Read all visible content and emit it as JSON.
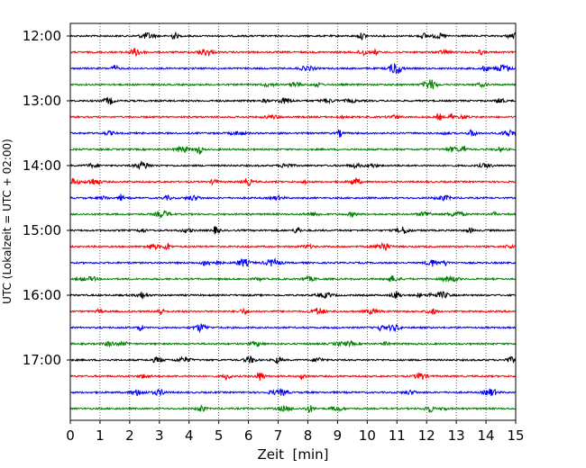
{
  "chart_data": {
    "type": "line",
    "title": "",
    "xlabel": "Zeit  [min]",
    "ylabel": "UTC (Lokalzeit = UTC + 02:00)",
    "xlim": [
      0,
      15
    ],
    "x_ticks": [
      "0",
      "1",
      "2",
      "3",
      "4",
      "5",
      "6",
      "7",
      "8",
      "9",
      "10",
      "11",
      "12",
      "13",
      "14",
      "15"
    ],
    "y_ticks": [
      "12:00",
      "13:00",
      "14:00",
      "15:00",
      "16:00",
      "17:00"
    ],
    "grid_x": true,
    "grid_style": "dotted",
    "trace_interval_minutes": 15,
    "trace_colors": [
      "#000000",
      "#ff0000",
      "#0000ff",
      "#008000"
    ],
    "traces": [
      {
        "start": "12:00",
        "color": "#000000"
      },
      {
        "start": "12:15",
        "color": "#ff0000"
      },
      {
        "start": "12:30",
        "color": "#0000ff"
      },
      {
        "start": "12:45",
        "color": "#008000"
      },
      {
        "start": "13:00",
        "color": "#000000"
      },
      {
        "start": "13:15",
        "color": "#ff0000"
      },
      {
        "start": "13:30",
        "color": "#0000ff"
      },
      {
        "start": "13:45",
        "color": "#008000"
      },
      {
        "start": "14:00",
        "color": "#000000"
      },
      {
        "start": "14:15",
        "color": "#ff0000"
      },
      {
        "start": "14:30",
        "color": "#0000ff"
      },
      {
        "start": "14:45",
        "color": "#008000"
      },
      {
        "start": "15:00",
        "color": "#000000"
      },
      {
        "start": "15:15",
        "color": "#ff0000"
      },
      {
        "start": "15:30",
        "color": "#0000ff"
      },
      {
        "start": "15:45",
        "color": "#008000"
      },
      {
        "start": "16:00",
        "color": "#000000"
      },
      {
        "start": "16:15",
        "color": "#ff0000"
      },
      {
        "start": "16:30",
        "color": "#0000ff"
      },
      {
        "start": "16:45",
        "color": "#008000"
      },
      {
        "start": "17:00",
        "color": "#000000"
      },
      {
        "start": "17:15",
        "color": "#ff0000"
      },
      {
        "start": "17:30",
        "color": "#0000ff"
      },
      {
        "start": "17:45",
        "color": "#008000"
      }
    ]
  }
}
